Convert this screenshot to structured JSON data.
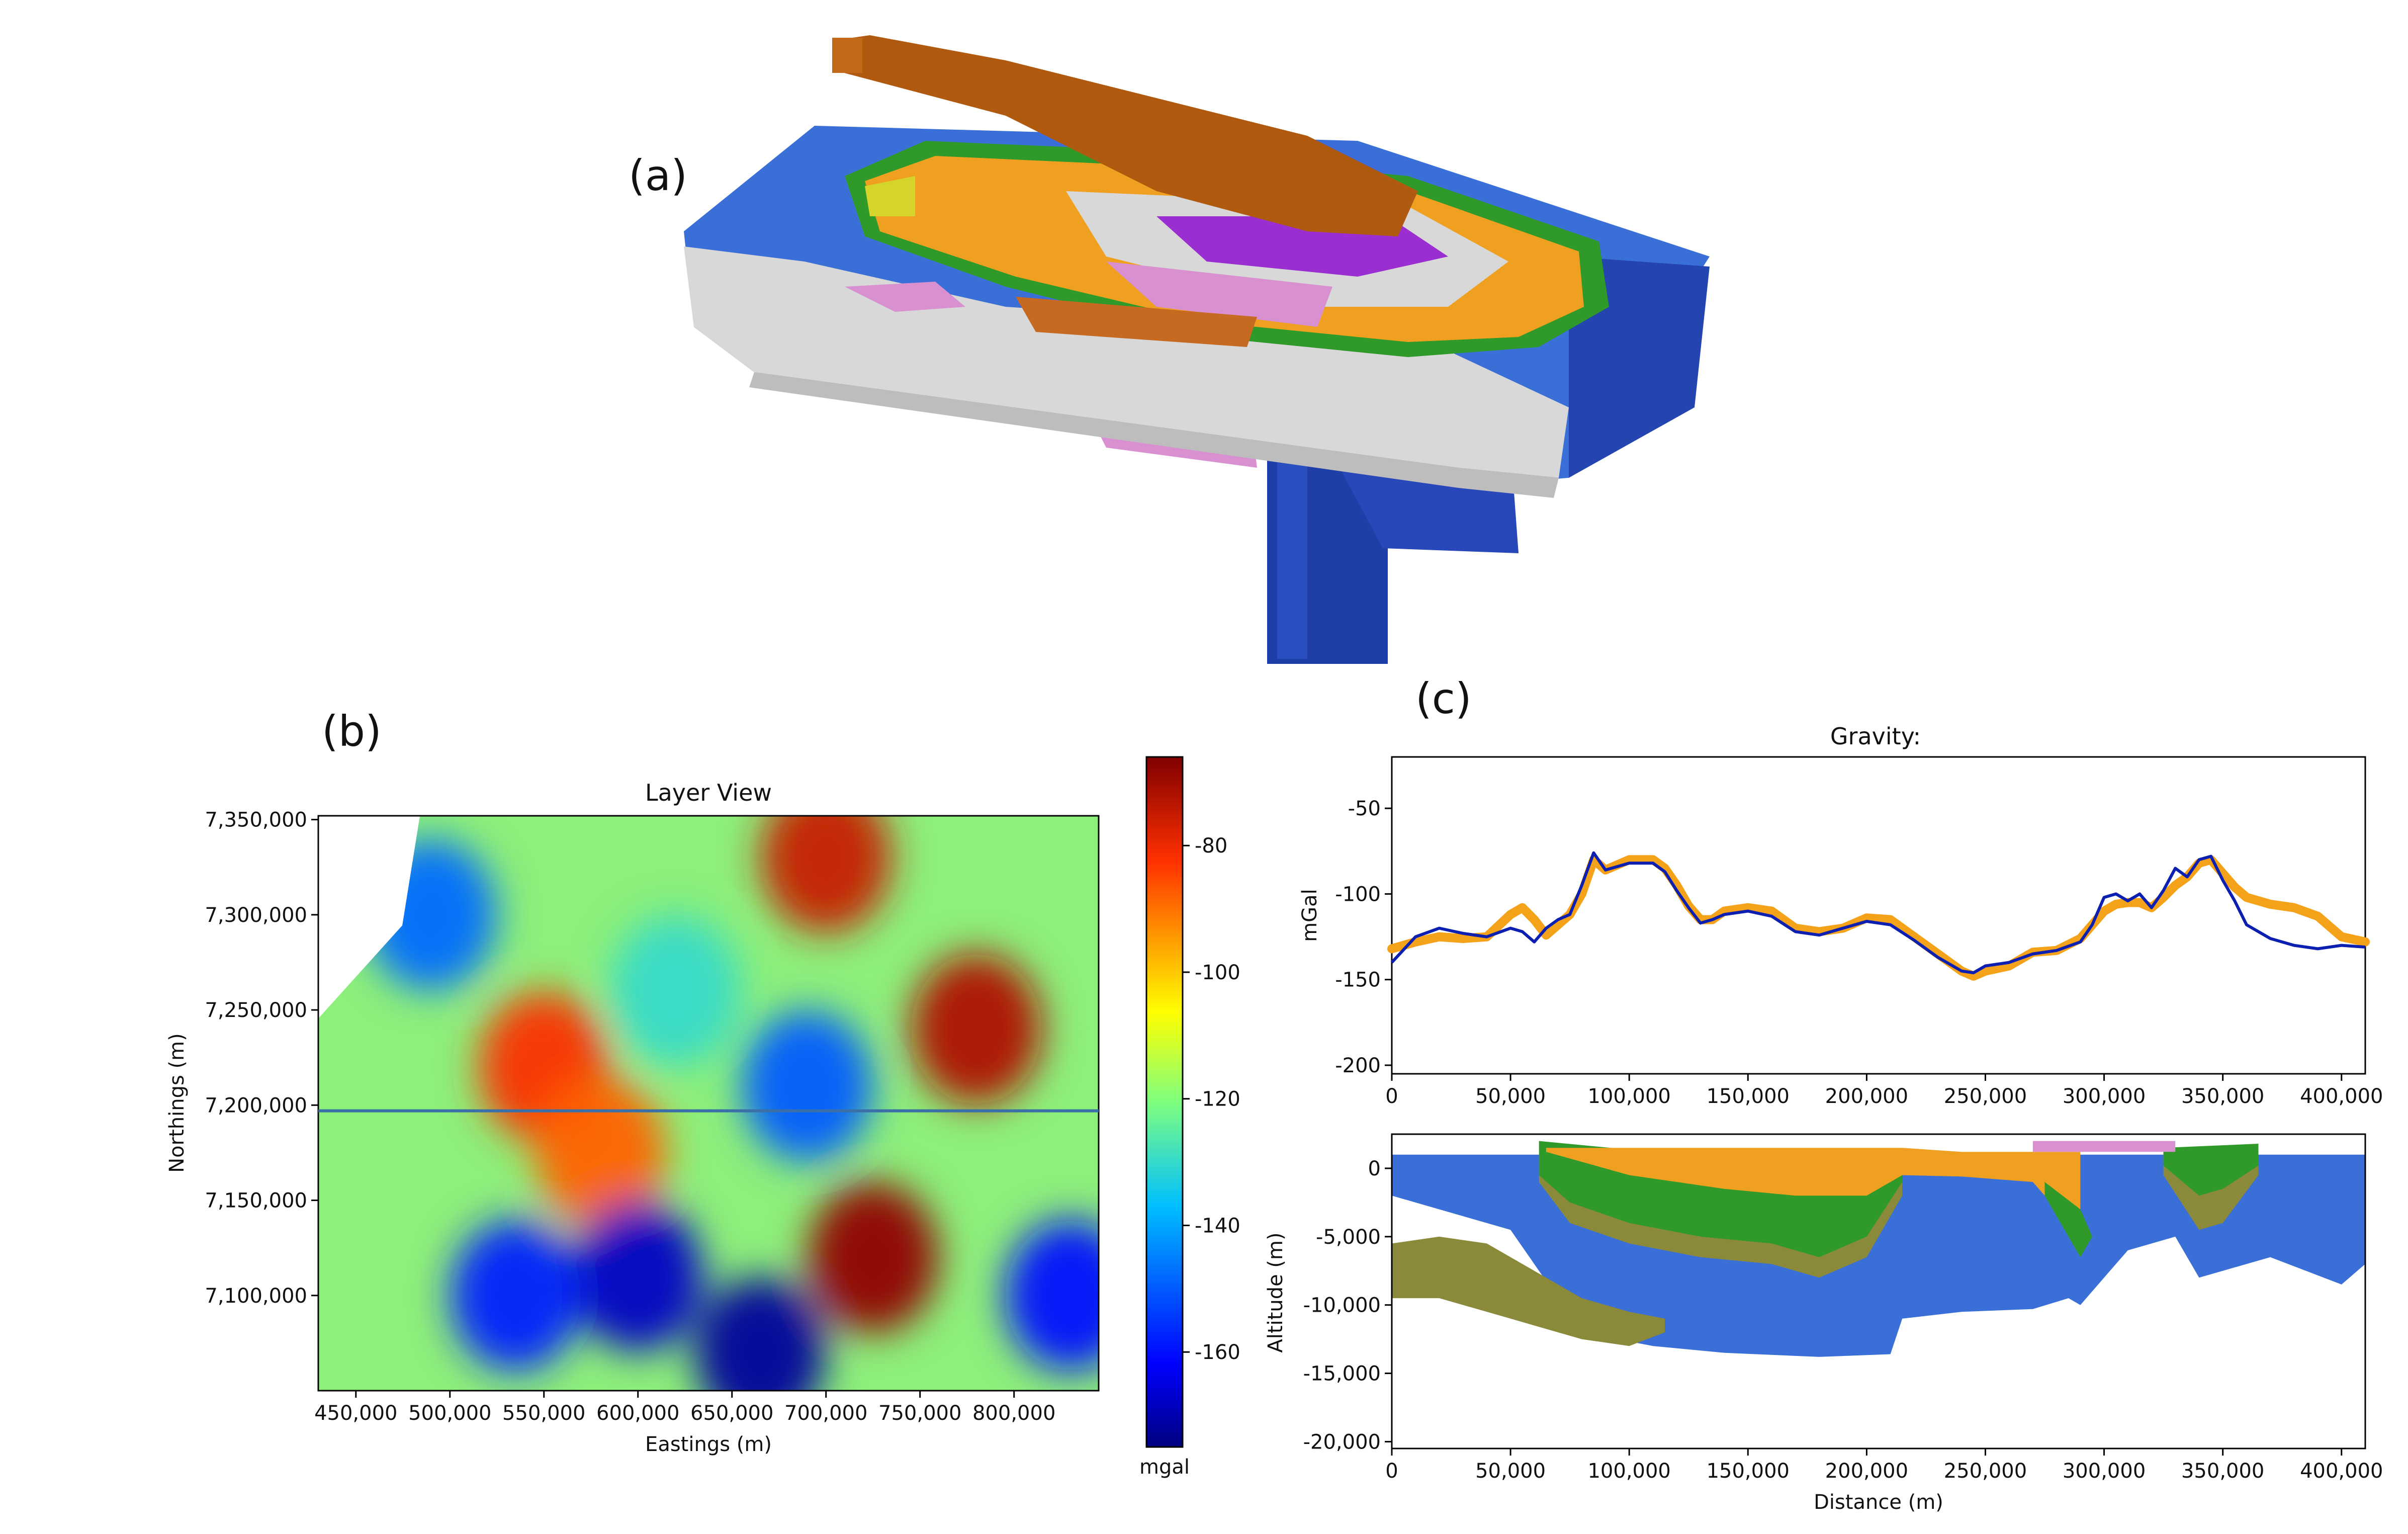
{
  "panel_labels": {
    "a": "(a)",
    "b": "(b)",
    "c": "(c)"
  },
  "colors": {
    "geo_blue": "#3a6fd8",
    "geo_blue_dark": "#1e3fa8",
    "geo_white": "#d8d8d8",
    "geo_orange": "#f0a020",
    "geo_brown": "#b05a10",
    "geo_purple": "#9a2ed0",
    "geo_pink": "#d890d0",
    "geo_green": "#2f9a2a",
    "geo_darkgreen": "#1b5a12",
    "geo_olive": "#8a8a3a",
    "obs_line": "#f5a21b",
    "calc_line": "#0b1fb0",
    "profile_line": "#3a6fa8"
  },
  "chart_data": [
    {
      "type": "heatmap",
      "title": "Layer View",
      "xlabel": "Eastings (m)",
      "ylabel": "Northings (m)",
      "xlim": [
        430000,
        845000
      ],
      "ylim": [
        7050000,
        7352000
      ],
      "x_ticks": [
        "450,000",
        "500,000",
        "550,000",
        "600,000",
        "650,000",
        "700,000",
        "750,000",
        "800,000"
      ],
      "x_tick_values": [
        450000,
        500000,
        550000,
        600000,
        650000,
        700000,
        750000,
        800000
      ],
      "y_ticks": [
        "7,350,000",
        "7,300,000",
        "7,250,000",
        "7,200,000",
        "7,150,000",
        "7,100,000"
      ],
      "y_tick_values": [
        7350000,
        7300000,
        7250000,
        7200000,
        7150000,
        7100000
      ],
      "profile_northing": 7197000,
      "colorbar": {
        "label": "mgal",
        "range": [
          -175,
          -66
        ],
        "ticks": [
          "-80",
          "-100",
          "-120",
          "-140",
          "-160"
        ],
        "tick_values": [
          -80,
          -100,
          -120,
          -140,
          -160
        ]
      },
      "anomalies": [
        {
          "x": 725000,
          "y": 7120000,
          "value": -68
        },
        {
          "x": 780000,
          "y": 7240000,
          "value": -72
        },
        {
          "x": 700000,
          "y": 7330000,
          "value": -75
        },
        {
          "x": 550000,
          "y": 7220000,
          "value": -82
        },
        {
          "x": 580000,
          "y": 7175000,
          "value": -88
        },
        {
          "x": 600000,
          "y": 7110000,
          "value": -168
        },
        {
          "x": 665000,
          "y": 7070000,
          "value": -172
        },
        {
          "x": 535000,
          "y": 7100000,
          "value": -158
        },
        {
          "x": 830000,
          "y": 7100000,
          "value": -160
        },
        {
          "x": 690000,
          "y": 7210000,
          "value": -150
        },
        {
          "x": 490000,
          "y": 7300000,
          "value": -148
        },
        {
          "x": 620000,
          "y": 7260000,
          "value": -130
        }
      ]
    },
    {
      "type": "line",
      "title": "Gravity:",
      "xlabel": "",
      "ylabel": "mGal",
      "xlim": [
        0,
        410000
      ],
      "ylim": [
        -205,
        -20
      ],
      "x_ticks": [
        "0",
        "50,000",
        "100,000",
        "150,000",
        "200,000",
        "250,000",
        "300,000",
        "350,000",
        "400,000"
      ],
      "x_tick_values": [
        0,
        50000,
        100000,
        150000,
        200000,
        250000,
        300000,
        350000,
        400000
      ],
      "y_ticks": [
        "-50",
        "-100",
        "-150",
        "-200"
      ],
      "y_tick_values": [
        -50,
        -100,
        -150,
        -200
      ],
      "x": [
        0,
        10000,
        20000,
        30000,
        40000,
        50000,
        55000,
        60000,
        65000,
        70000,
        75000,
        80000,
        85000,
        90000,
        100000,
        110000,
        115000,
        120000,
        125000,
        130000,
        135000,
        140000,
        150000,
        160000,
        170000,
        180000,
        190000,
        200000,
        210000,
        220000,
        230000,
        240000,
        245000,
        250000,
        260000,
        270000,
        280000,
        290000,
        295000,
        300000,
        305000,
        310000,
        315000,
        320000,
        325000,
        330000,
        335000,
        340000,
        345000,
        350000,
        355000,
        360000,
        370000,
        380000,
        390000,
        400000,
        410000
      ],
      "series": [
        {
          "values": [
            -132,
            -128,
            -125,
            -126,
            -125,
            -112,
            -108,
            -115,
            -124,
            -118,
            -112,
            -100,
            -80,
            -86,
            -80,
            -80,
            -85,
            -95,
            -107,
            -115,
            -115,
            -110,
            -108,
            -110,
            -120,
            -122,
            -120,
            -114,
            -115,
            -125,
            -135,
            -145,
            -148,
            -145,
            -142,
            -134,
            -133,
            -126,
            -118,
            -110,
            -106,
            -105,
            -105,
            -108,
            -102,
            -95,
            -90,
            -82,
            -80,
            -88,
            -96,
            -102,
            -106,
            -108,
            -113,
            -125,
            -128
          ]
        },
        {
          "values": [
            -140,
            -125,
            -120,
            -123,
            -125,
            -120,
            -122,
            -128,
            -120,
            -115,
            -112,
            -95,
            -76,
            -86,
            -82,
            -82,
            -87,
            -98,
            -108,
            -117,
            -115,
            -112,
            -110,
            -113,
            -122,
            -124,
            -120,
            -116,
            -118,
            -127,
            -137,
            -145,
            -146,
            -142,
            -140,
            -135,
            -133,
            -128,
            -118,
            -102,
            -100,
            -104,
            -100,
            -108,
            -98,
            -85,
            -90,
            -80,
            -78,
            -92,
            -104,
            -118,
            -126,
            -130,
            -132,
            -130,
            -131
          ]
        }
      ]
    },
    {
      "type": "area",
      "title": "",
      "xlabel": "Distance (m)",
      "ylabel": "Altitude (m)",
      "xlim": [
        0,
        410000
      ],
      "ylim": [
        -20500,
        2500
      ],
      "x_ticks": [
        "0",
        "50,000",
        "100,000",
        "150,000",
        "200,000",
        "250,000",
        "300,000",
        "350,000",
        "400,000"
      ],
      "x_tick_values": [
        0,
        50000,
        100000,
        150000,
        200000,
        250000,
        300000,
        350000,
        400000
      ],
      "y_ticks": [
        "0",
        "-5,000",
        "-10,000",
        "-15,000",
        "-20,000"
      ],
      "y_tick_values": [
        0,
        -5000,
        -10000,
        -15000,
        -20000
      ],
      "layers": [
        {
          "color": "geo_blue",
          "top": [
            [
              0,
              1000
            ],
            [
              410000,
              1000
            ]
          ],
          "bottom": [
            [
              0,
              -2000
            ],
            [
              20000,
              -3000
            ],
            [
              50000,
              -4500
            ],
            [
              60000,
              -7000
            ],
            [
              70000,
              -9500
            ],
            [
              80000,
              -11500
            ],
            [
              95000,
              -12500
            ],
            [
              110000,
              -13000
            ],
            [
              140000,
              -13500
            ],
            [
              180000,
              -13800
            ],
            [
              210000,
              -13600
            ],
            [
              215000,
              -11000
            ],
            [
              240000,
              -10500
            ],
            [
              270000,
              -10300
            ],
            [
              285000,
              -9500
            ],
            [
              290000,
              -10000
            ],
            [
              300000,
              -8000
            ],
            [
              310000,
              -6000
            ],
            [
              330000,
              -5000
            ],
            [
              340000,
              -8000
            ],
            [
              350000,
              -7500
            ],
            [
              370000,
              -6500
            ],
            [
              400000,
              -8500
            ],
            [
              410000,
              -7000
            ]
          ]
        },
        {
          "color": "geo_olive",
          "top": [
            [
              0,
              -5500
            ],
            [
              20000,
              -5000
            ],
            [
              40000,
              -5500
            ],
            [
              60000,
              -7500
            ],
            [
              80000,
              -9500
            ],
            [
              100000,
              -10500
            ],
            [
              115000,
              -11000
            ]
          ],
          "bottom": [
            [
              0,
              -9500
            ],
            [
              20000,
              -9500
            ],
            [
              50000,
              -11000
            ],
            [
              80000,
              -12500
            ],
            [
              100000,
              -13000
            ],
            [
              115000,
              -12000
            ]
          ]
        },
        {
          "color": "geo_olive",
          "top": [
            [
              62000,
              2000
            ],
            [
              80000,
              1500
            ],
            [
              110000,
              1200
            ],
            [
              150000,
              1000
            ],
            [
              190000,
              1000
            ],
            [
              215000,
              1000
            ]
          ],
          "bottom": [
            [
              62000,
              -1000
            ],
            [
              75000,
              -4000
            ],
            [
              100000,
              -5500
            ],
            [
              130000,
              -6500
            ],
            [
              160000,
              -7000
            ],
            [
              180000,
              -8000
            ],
            [
              200000,
              -6500
            ],
            [
              215000,
              -2000
            ]
          ]
        },
        {
          "color": "geo_green",
          "top": [
            [
              62000,
              2000
            ],
            [
              110000,
              1200
            ],
            [
              190000,
              1000
            ],
            [
              215000,
              1000
            ]
          ],
          "bottom": [
            [
              62000,
              -500
            ],
            [
              75000,
              -2500
            ],
            [
              100000,
              -4000
            ],
            [
              130000,
              -5000
            ],
            [
              160000,
              -5500
            ],
            [
              180000,
              -6500
            ],
            [
              200000,
              -5000
            ],
            [
              215000,
              -1000
            ]
          ]
        },
        {
          "color": "geo_orange",
          "top": [
            [
              65000,
              1500
            ],
            [
              215000,
              1500
            ],
            [
              240000,
              1200
            ],
            [
              270000,
              1200
            ],
            [
              290000,
              1200
            ]
          ],
          "bottom": [
            [
              65000,
              1200
            ],
            [
              100000,
              -500
            ],
            [
              140000,
              -1500
            ],
            [
              170000,
              -2000
            ],
            [
              200000,
              -2000
            ],
            [
              215000,
              -500
            ],
            [
              240000,
              -600
            ],
            [
              270000,
              -1000
            ],
            [
              290000,
              -5000
            ]
          ]
        },
        {
          "color": "geo_green",
          "top": [
            [
              275000,
              -1000
            ],
            [
              290000,
              -3000
            ]
          ],
          "bottom": [
            [
              275000,
              -2000
            ],
            [
              290000,
              -6500
            ],
            [
              295000,
              -5000
            ]
          ]
        },
        {
          "color": "geo_olive",
          "top": [
            [
              325000,
              1500
            ],
            [
              350000,
              1500
            ],
            [
              365000,
              1800
            ]
          ],
          "bottom": [
            [
              325000,
              -500
            ],
            [
              340000,
              -4500
            ],
            [
              350000,
              -4000
            ],
            [
              365000,
              -500
            ]
          ]
        },
        {
          "color": "geo_green",
          "top": [
            [
              325000,
              1500
            ],
            [
              365000,
              1800
            ]
          ],
          "bottom": [
            [
              325000,
              200
            ],
            [
              340000,
              -2000
            ],
            [
              350000,
              -1500
            ],
            [
              365000,
              200
            ]
          ]
        },
        {
          "color": "geo_pink",
          "top": [
            [
              270000,
              2000
            ],
            [
              330000,
              2000
            ]
          ],
          "bottom": [
            [
              270000,
              1200
            ],
            [
              330000,
              1200
            ]
          ]
        }
      ]
    }
  ]
}
